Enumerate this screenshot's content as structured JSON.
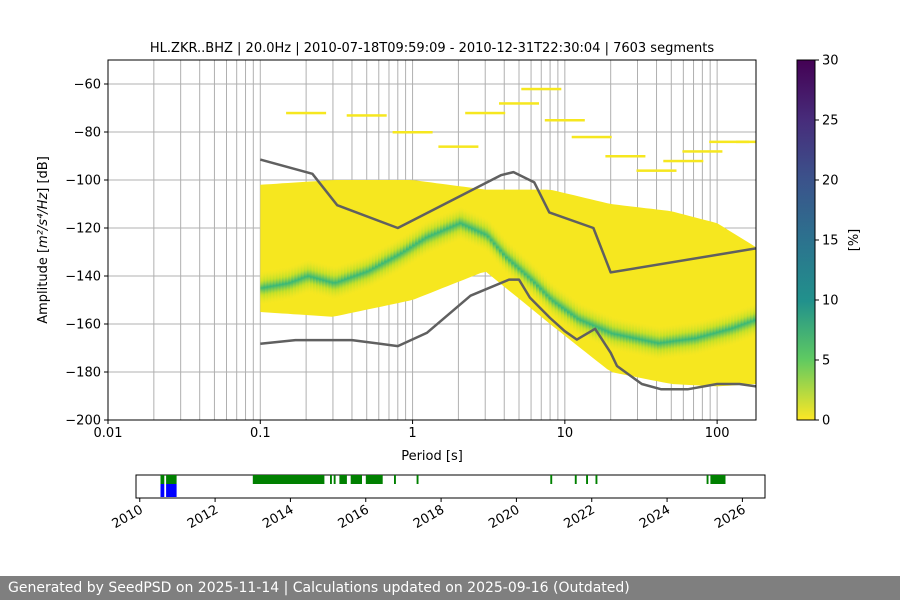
{
  "chart_data": {
    "type": "heatmap",
    "title": "HL.ZKR..BHZ | 20.0Hz | 2010-07-18T09:59:09 - 2010-12-31T22:30:04 | 7603 segments",
    "xlabel": "Period [s]",
    "ylabel_main": "Amplitude [",
    "ylabel_math": "m²/s⁴/Hz",
    "ylabel_end": "] [dB]",
    "x_scale": "log",
    "xlim": [
      0.01,
      180
    ],
    "ylim": [
      -200,
      -50
    ],
    "x_ticks": [
      {
        "value": 0.01,
        "label": "0.01"
      },
      {
        "value": 0.1,
        "label": "0.1"
      },
      {
        "value": 1,
        "label": "1"
      },
      {
        "value": 10,
        "label": "10"
      },
      {
        "value": 100,
        "label": "100"
      }
    ],
    "y_ticks": [
      {
        "value": -60,
        "label": "−60"
      },
      {
        "value": -80,
        "label": "−80"
      },
      {
        "value": -100,
        "label": "−100"
      },
      {
        "value": -120,
        "label": "−120"
      },
      {
        "value": -140,
        "label": "−140"
      },
      {
        "value": -160,
        "label": "−160"
      },
      {
        "value": -180,
        "label": "−180"
      },
      {
        "value": -200,
        "label": "−200"
      }
    ],
    "grid": true,
    "colorbar": {
      "label": "[%]",
      "min": 0,
      "max": 30,
      "ticks": [
        {
          "value": 0,
          "label": "0"
        },
        {
          "value": 5,
          "label": "5"
        },
        {
          "value": 10,
          "label": "10"
        },
        {
          "value": 15,
          "label": "15"
        },
        {
          "value": 20,
          "label": "20"
        },
        {
          "value": 25,
          "label": "25"
        },
        {
          "value": 30,
          "label": "30"
        }
      ],
      "colormap": "viridis"
    },
    "mode": [
      [
        0.1,
        -145
      ],
      [
        0.15,
        -143
      ],
      [
        0.2,
        -140
      ],
      [
        0.3,
        -143
      ],
      [
        0.5,
        -138
      ],
      [
        0.8,
        -131
      ],
      [
        1.2,
        -124
      ],
      [
        2,
        -118
      ],
      [
        3,
        -123
      ],
      [
        4,
        -132
      ],
      [
        6,
        -142
      ],
      [
        8,
        -150
      ],
      [
        12,
        -158
      ],
      [
        20,
        -164
      ],
      [
        40,
        -168
      ],
      [
        70,
        -166
      ],
      [
        120,
        -162
      ],
      [
        180,
        -158
      ]
    ],
    "spread_upper": [
      [
        0.1,
        -102
      ],
      [
        0.3,
        -100
      ],
      [
        1,
        -100
      ],
      [
        3,
        -104
      ],
      [
        8,
        -104
      ],
      [
        20,
        -110
      ],
      [
        50,
        -113
      ],
      [
        100,
        -118
      ],
      [
        180,
        -128
      ]
    ],
    "spread_lower": [
      [
        0.1,
        -155
      ],
      [
        0.3,
        -157
      ],
      [
        1,
        -150
      ],
      [
        3,
        -138
      ],
      [
        8,
        -160
      ],
      [
        20,
        -180
      ],
      [
        50,
        -185
      ],
      [
        100,
        -186
      ],
      [
        180,
        -185
      ]
    ],
    "outliers": [
      [
        0.2,
        -72
      ],
      [
        0.5,
        -73
      ],
      [
        1,
        -80
      ],
      [
        2,
        -86
      ],
      [
        3,
        -72
      ],
      [
        5,
        -68
      ],
      [
        7,
        -62
      ],
      [
        10,
        -75
      ],
      [
        15,
        -82
      ],
      [
        25,
        -90
      ],
      [
        40,
        -96
      ],
      [
        60,
        -92
      ],
      [
        80,
        -88
      ],
      [
        120,
        -84
      ],
      [
        180,
        -84
      ]
    ],
    "series": [
      {
        "name": "",
        "color": "#606060",
        "points": [
          [
            0.1,
            -91.5
          ],
          [
            0.22,
            -97.4
          ],
          [
            0.32,
            -110.5
          ],
          [
            0.8,
            -120
          ],
          [
            3.8,
            -98
          ],
          [
            4.6,
            -96.7
          ],
          [
            6.3,
            -101
          ],
          [
            7.9,
            -113.5
          ],
          [
            15.4,
            -120
          ],
          [
            20,
            -138.5
          ],
          [
            180,
            -128.5
          ]
        ]
      },
      {
        "name": "",
        "color": "#606060",
        "points": [
          [
            0.1,
            -168.2
          ],
          [
            0.17,
            -166.7
          ],
          [
            0.4,
            -166.7
          ],
          [
            0.8,
            -169.2
          ],
          [
            1.24,
            -163.7
          ],
          [
            2.4,
            -148.2
          ],
          [
            4.3,
            -141.5
          ],
          [
            5,
            -141.5
          ],
          [
            5.9,
            -149
          ],
          [
            8,
            -157.5
          ],
          [
            10,
            -163
          ],
          [
            12,
            -166.5
          ],
          [
            15.8,
            -162
          ],
          [
            20,
            -172
          ],
          [
            22,
            -177.5
          ],
          [
            32,
            -185
          ],
          [
            43,
            -187.2
          ],
          [
            64,
            -187.2
          ],
          [
            100,
            -185
          ],
          [
            140,
            -185
          ],
          [
            180,
            -186
          ]
        ]
      }
    ]
  },
  "timeline": {
    "x_ticks": [
      {
        "value": 2010,
        "label": "2010"
      },
      {
        "value": 2012,
        "label": "2012"
      },
      {
        "value": 2014,
        "label": "2014"
      },
      {
        "value": 2016,
        "label": "2016"
      },
      {
        "value": 2018,
        "label": "2018"
      },
      {
        "value": 2020,
        "label": "2020"
      },
      {
        "value": 2022,
        "label": "2022"
      },
      {
        "value": 2024,
        "label": "2024"
      },
      {
        "value": 2026,
        "label": "2026"
      }
    ],
    "xlim": [
      2009.9,
      2026.6
    ],
    "green_color": "#008000",
    "blue_color": "#0000ff",
    "green_segments": [
      [
        2010.55,
        2010.65
      ],
      [
        2010.7,
        2010.98
      ],
      [
        2013.0,
        2014.9
      ],
      [
        2015.05,
        2015.1
      ],
      [
        2015.15,
        2015.2
      ],
      [
        2015.3,
        2015.5
      ],
      [
        2015.6,
        2015.9
      ],
      [
        2016.0,
        2016.45
      ],
      [
        2016.75,
        2016.8
      ],
      [
        2017.35,
        2017.4
      ],
      [
        2020.9,
        2020.95
      ],
      [
        2021.55,
        2021.6
      ],
      [
        2021.85,
        2021.9
      ],
      [
        2022.1,
        2022.15
      ],
      [
        2025.05,
        2025.1
      ],
      [
        2025.15,
        2025.55
      ]
    ],
    "blue_segments": [
      [
        2010.55,
        2010.65
      ],
      [
        2010.7,
        2010.98
      ]
    ]
  },
  "footer": {
    "text": "Generated by SeedPSD on 2025-11-14 | Calculations updated on 2025-09-16 (Outdated)"
  }
}
